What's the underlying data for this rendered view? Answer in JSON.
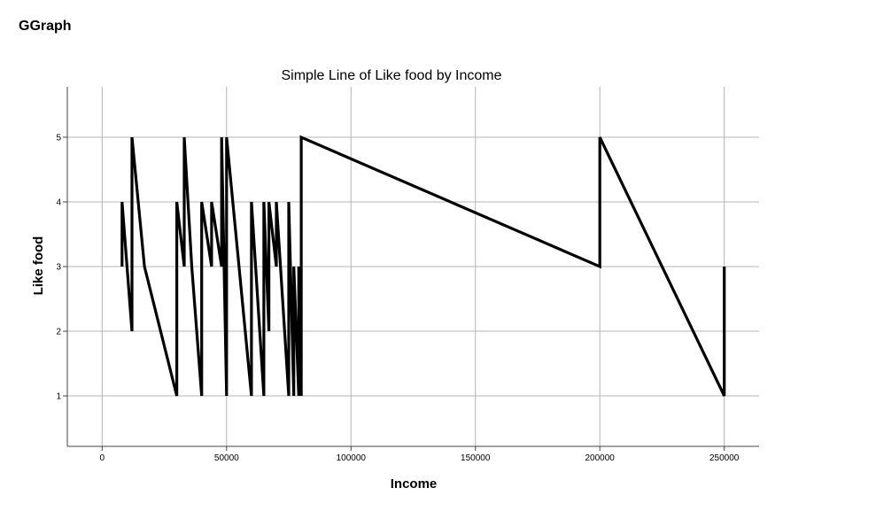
{
  "app": {
    "title": "GGraph"
  },
  "chart_data": {
    "type": "line",
    "title": "Simple Line of Like food by Income",
    "xlabel": "Income",
    "ylabel": "Like food",
    "xlim": [
      -14000,
      264000
    ],
    "ylim": [
      0.22,
      5.78
    ],
    "xticks": [
      0,
      50000,
      100000,
      150000,
      200000,
      250000
    ],
    "yticks": [
      1,
      2,
      3,
      4,
      5
    ],
    "grid": true,
    "line_color": "#000000",
    "grid_color": "#b4b4b4",
    "series": [
      {
        "x": [
          8000,
          8000,
          12000,
          12000,
          17000,
          30000,
          30000,
          33000,
          33000,
          36000,
          40000,
          40000,
          44000,
          44000,
          48000,
          48000,
          50000,
          50000,
          60000,
          60000,
          65000,
          65000,
          67000,
          67000,
          70000,
          70000,
          75000,
          75000,
          77000,
          77000,
          79000,
          79000,
          80000,
          80000,
          200000,
          200000,
          250000,
          250000
        ],
        "y": [
          3,
          4,
          2,
          5,
          3,
          1,
          4,
          3,
          5,
          3,
          1,
          4,
          3,
          4,
          3,
          5,
          1,
          5,
          1,
          4,
          1,
          4,
          2,
          4,
          3,
          4,
          1,
          4,
          1,
          3,
          1,
          3,
          1,
          5,
          3,
          5,
          1,
          3
        ]
      }
    ]
  }
}
